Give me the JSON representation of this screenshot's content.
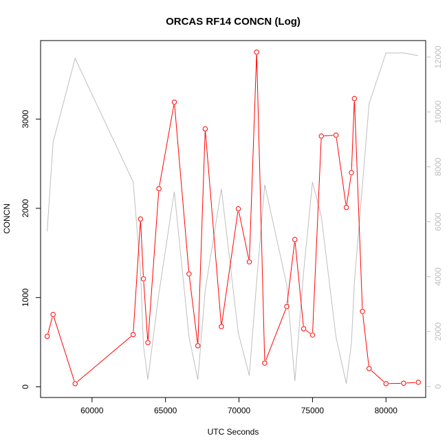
{
  "chart_data": {
    "type": "line",
    "title": "ORCAS RF14 CONCN (Log)",
    "xlabel": "UTC Seconds",
    "ylabel": "CONCN",
    "xlim": [
      56500,
      82700
    ],
    "ylim": [
      -120,
      3880
    ],
    "y2lim": [
      -400,
      12600
    ],
    "xticks": [
      60000,
      65000,
      70000,
      75000,
      80000
    ],
    "yticks": [
      0,
      1000,
      2000,
      3000
    ],
    "y2ticks": [
      0,
      2000,
      4000,
      6000,
      8000,
      10000,
      12000
    ],
    "grid": false,
    "legend": "none",
    "series": [
      {
        "axis": "left",
        "color": "#ff0000",
        "marker": "circle-open",
        "x": [
          56950,
          57350,
          58850,
          62800,
          63300,
          63500,
          63800,
          64550,
          65600,
          66600,
          67200,
          67700,
          68800,
          69950,
          70700,
          71200,
          71750,
          73250,
          73800,
          74400,
          75000,
          75600,
          76600,
          77300,
          77650,
          77850,
          78400,
          78850,
          80000,
          81200,
          82200
        ],
        "y": [
          565,
          810,
          35,
          585,
          1880,
          1210,
          495,
          2220,
          3190,
          1265,
          460,
          2890,
          675,
          1995,
          1400,
          3750,
          265,
          900,
          1650,
          650,
          580,
          2810,
          2820,
          2010,
          2400,
          3230,
          845,
          205,
          35,
          40,
          50
        ]
      },
      {
        "axis": "right",
        "color": "#bebebe",
        "marker": "none",
        "x": [
          56950,
          57350,
          58850,
          62800,
          63300,
          63500,
          63800,
          64550,
          65600,
          66600,
          67200,
          67700,
          68800,
          69950,
          70700,
          71200,
          71750,
          73250,
          73800,
          74400,
          75000,
          75600,
          76600,
          77300,
          77650,
          77850,
          78400,
          78850,
          80000,
          81200,
          82200
        ],
        "y": [
          5650,
          8900,
          11950,
          7450,
          4200,
          1500,
          250,
          3400,
          7100,
          1800,
          250,
          3500,
          7200,
          1950,
          400,
          3800,
          7350,
          3700,
          200,
          4200,
          7450,
          6200,
          1800,
          100,
          1600,
          3800,
          7350,
          10300,
          12150,
          12150,
          12050
        ]
      }
    ]
  }
}
